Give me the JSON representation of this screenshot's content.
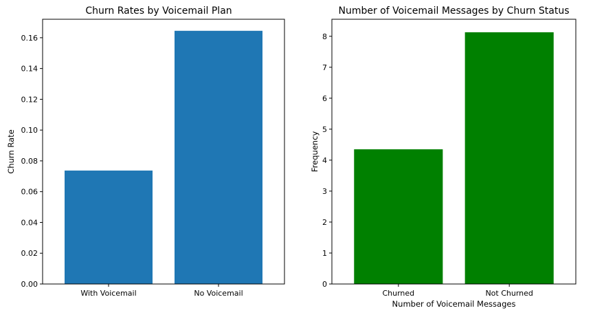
{
  "chart_data": [
    {
      "type": "bar",
      "title": "Churn Rates by Voicemail Plan",
      "xlabel": "",
      "ylabel": "Churn Rate",
      "categories": [
        "With Voicemail",
        "No Voicemail"
      ],
      "values": [
        0.0737,
        0.1645
      ],
      "ylim": [
        0,
        0.172
      ],
      "yticks": [
        "0.00",
        "0.02",
        "0.04",
        "0.06",
        "0.08",
        "0.10",
        "0.12",
        "0.14",
        "0.16"
      ],
      "yticks_values": [
        0,
        0.02,
        0.04,
        0.06,
        0.08,
        0.1,
        0.12,
        0.14,
        0.16
      ],
      "color": "#1f77b4",
      "grid": false,
      "legend": "none"
    },
    {
      "type": "bar",
      "title": "Number of Voicemail Messages by Churn Status",
      "xlabel": "Number of Voicemail Messages",
      "ylabel": "Frequency",
      "categories": [
        "Churned",
        "Not Churned"
      ],
      "values": [
        4.35,
        8.13
      ],
      "ylim": [
        0,
        8.55
      ],
      "yticks": [
        "0",
        "1",
        "2",
        "3",
        "4",
        "5",
        "6",
        "7",
        "8"
      ],
      "yticks_values": [
        0,
        1,
        2,
        3,
        4,
        5,
        6,
        7,
        8
      ],
      "color": "#008000",
      "grid": false,
      "legend": "none"
    }
  ]
}
